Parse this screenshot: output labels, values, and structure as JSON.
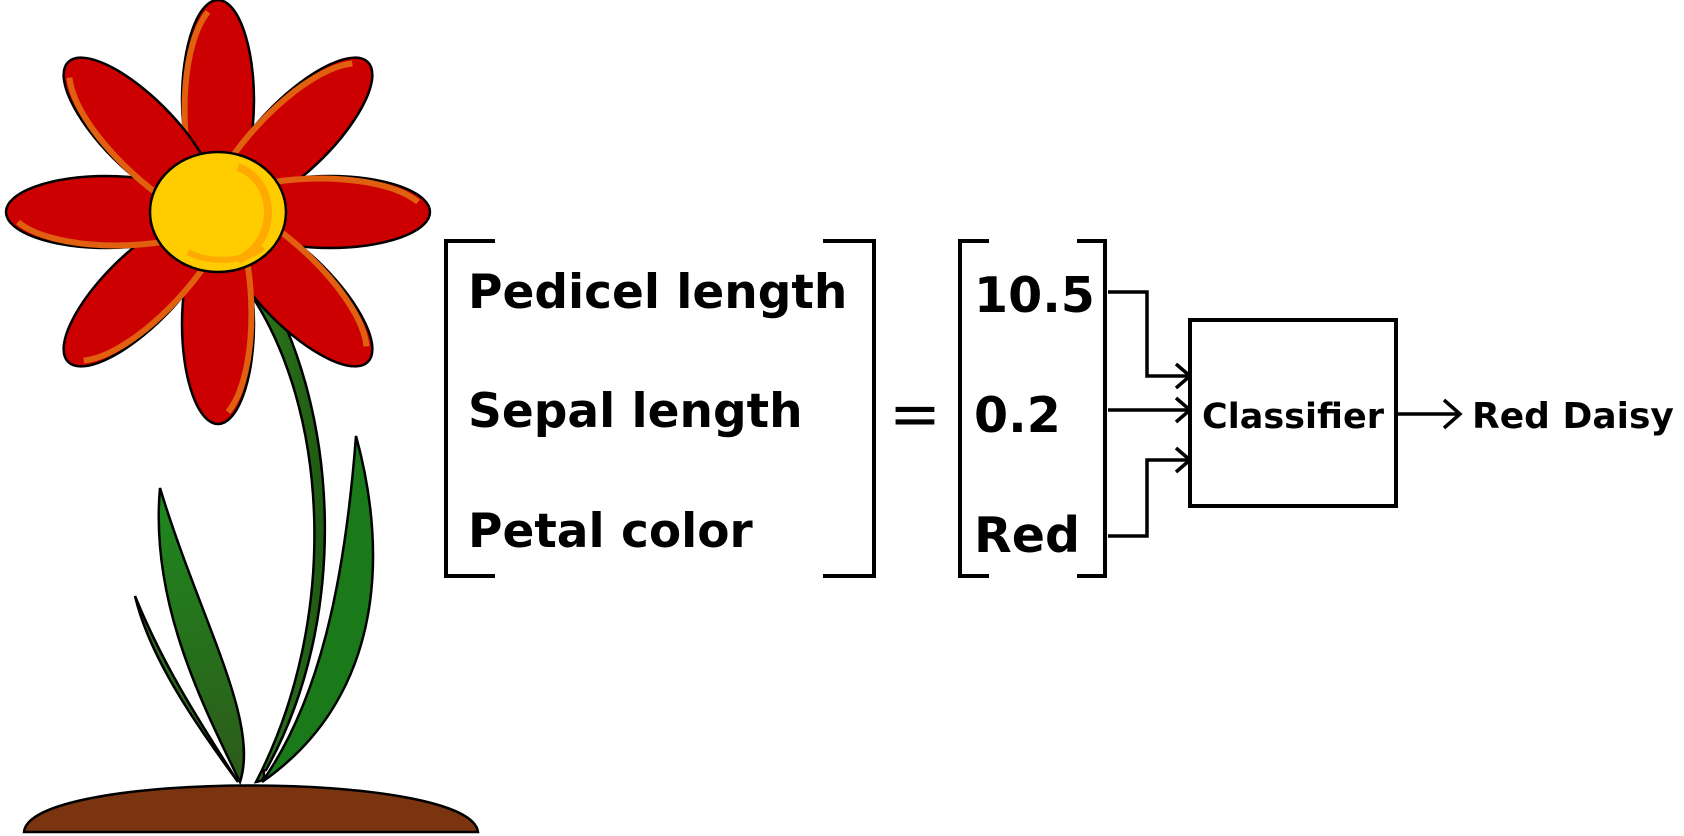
{
  "features": {
    "labels": [
      "Pedicel length",
      "Sepal length",
      "Petal color"
    ]
  },
  "equals_sign": "=",
  "values": {
    "items": [
      "10.5",
      "0.2",
      "Red"
    ]
  },
  "classifier": {
    "label": "Classifier"
  },
  "output": {
    "label": "Red Daisy"
  },
  "colors": {
    "petal": "#cc0000",
    "petal_highlight": "#e06010",
    "flower_center": "#ffcc00",
    "center_ring": "#ffaa00",
    "stem": "#1a7a1a",
    "leaf_dark": "#2d5a1a",
    "soil": "#7a3410",
    "line": "#000000"
  },
  "icons": {
    "flower": "daisy-flower-icon",
    "arrow": "arrow-right-icon"
  }
}
